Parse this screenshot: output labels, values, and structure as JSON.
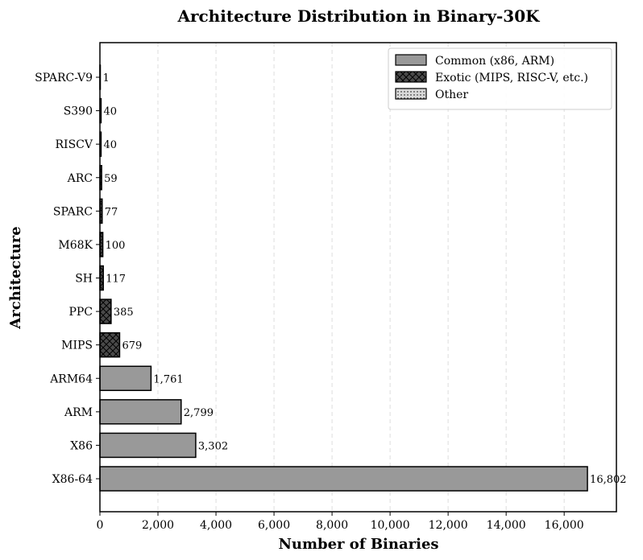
{
  "chart_data": {
    "type": "bar",
    "orientation": "horizontal",
    "title": "Architecture Distribution in Binary-30K",
    "xlabel": "Number of Binaries",
    "ylabel": "Architecture",
    "xlim": [
      0,
      17800
    ],
    "xticks": [
      0,
      2000,
      4000,
      6000,
      8000,
      10000,
      12000,
      14000,
      16000
    ],
    "xtick_labels": [
      "0",
      "2,000",
      "4,000",
      "6,000",
      "8,000",
      "10,000",
      "12,000",
      "14,000",
      "16,000"
    ],
    "grid": "x dashed",
    "legend_position": "top-right",
    "legend": [
      {
        "name": "Common (x86, ARM)",
        "color": "#999999",
        "pattern": "none"
      },
      {
        "name": "Exotic (MIPS, RISC-V, etc.)",
        "color": "#4a4a4a",
        "pattern": "crosshatch"
      },
      {
        "name": "Other",
        "color": "#d9d9d9",
        "pattern": "dots"
      }
    ],
    "categories": [
      "X86-64",
      "X86",
      "ARM",
      "ARM64",
      "MIPS",
      "PPC",
      "SH",
      "M68K",
      "SPARC",
      "ARC",
      "RISCV",
      "S390",
      "SPARC-V9"
    ],
    "values": [
      16802,
      3302,
      2799,
      1761,
      679,
      385,
      117,
      100,
      77,
      59,
      40,
      40,
      1
    ],
    "value_labels": [
      "16,802",
      "3,302",
      "2,799",
      "1,761",
      "679",
      "385",
      "117",
      "100",
      "77",
      "59",
      "40",
      "40",
      "1"
    ],
    "groups": [
      0,
      0,
      0,
      0,
      1,
      1,
      1,
      1,
      1,
      1,
      1,
      1,
      1
    ]
  }
}
